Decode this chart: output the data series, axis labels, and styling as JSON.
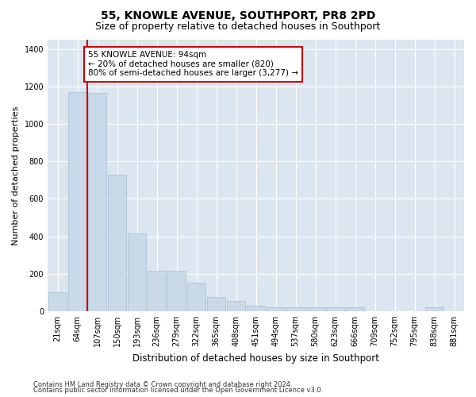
{
  "title": "55, KNOWLE AVENUE, SOUTHPORT, PR8 2PD",
  "subtitle": "Size of property relative to detached houses in Southport",
  "xlabel": "Distribution of detached houses by size in Southport",
  "ylabel": "Number of detached properties",
  "categories": [
    "21sqm",
    "64sqm",
    "107sqm",
    "150sqm",
    "193sqm",
    "236sqm",
    "279sqm",
    "322sqm",
    "365sqm",
    "408sqm",
    "451sqm",
    "494sqm",
    "537sqm",
    "580sqm",
    "623sqm",
    "666sqm",
    "709sqm",
    "752sqm",
    "795sqm",
    "838sqm",
    "881sqm"
  ],
  "values": [
    100,
    1170,
    1165,
    730,
    415,
    215,
    215,
    150,
    75,
    55,
    30,
    20,
    20,
    20,
    20,
    20,
    0,
    0,
    0,
    20,
    0
  ],
  "bar_color": "#c9d9e8",
  "bar_edge_color": "#a0bdd0",
  "annotation_text": "55 KNOWLE AVENUE: 94sqm\n← 20% of detached houses are smaller (820)\n80% of semi-detached houses are larger (3,277) →",
  "annotation_box_color": "#ffffff",
  "annotation_box_edge_color": "#cc0000",
  "ylim": [
    0,
    1450
  ],
  "yticks": [
    0,
    200,
    400,
    600,
    800,
    1000,
    1200,
    1400
  ],
  "plot_bg_color": "#dce6f0",
  "footer_line1": "Contains HM Land Registry data © Crown copyright and database right 2024.",
  "footer_line2": "Contains public sector information licensed under the Open Government Licence v3.0.",
  "title_fontsize": 10,
  "subtitle_fontsize": 9,
  "tick_fontsize": 7,
  "ylabel_fontsize": 8,
  "xlabel_fontsize": 8.5,
  "annotation_fontsize": 7.5,
  "footer_fontsize": 6
}
